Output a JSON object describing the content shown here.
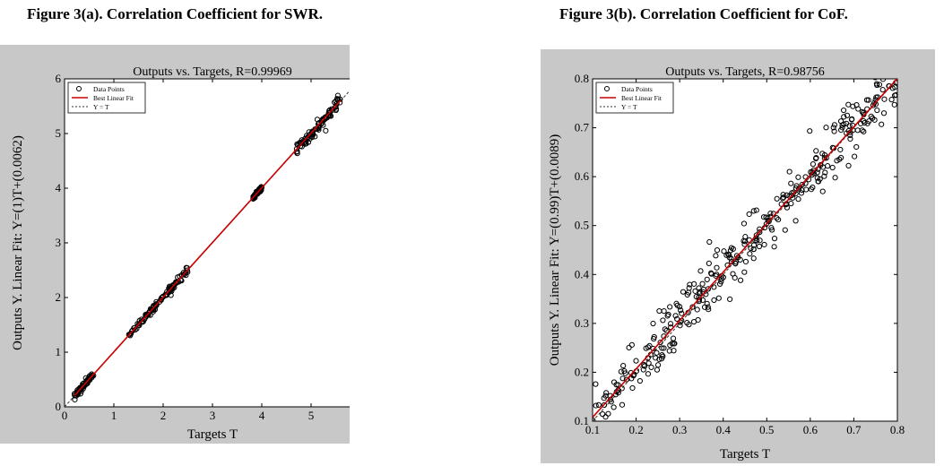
{
  "figures": {
    "a": {
      "caption": "Figure 3(a). Correlation Coefficient for SWR."
    },
    "b": {
      "caption": "Figure 3(b). Correlation Coefficient for CoF."
    }
  },
  "chart_data": [
    {
      "type": "scatter",
      "title": "Outputs vs. Targets, R=0.99969",
      "xlabel": "Targets T",
      "ylabel": "Outputs Y. Linear Fit: Y=(1)T+(0.0062)",
      "xlim": [
        0,
        6
      ],
      "ylim": [
        0,
        6
      ],
      "xticks": [
        0,
        1,
        2,
        3,
        4,
        5,
        6
      ],
      "yticks": [
        0,
        1,
        2,
        3,
        4,
        5,
        6
      ],
      "grid": false,
      "legend": {
        "placement": "top-left",
        "entries": [
          "Data Points",
          "Best Linear Fit",
          "Y = T"
        ]
      },
      "fit": {
        "slope": 1.0,
        "intercept": 0.0062
      },
      "clusters": [
        {
          "x_range": [
            0.2,
            0.6
          ],
          "noise": 0.03
        },
        {
          "x_range": [
            1.3,
            2.5
          ],
          "noise": 0.03
        },
        {
          "x_range": [
            3.8,
            4.0
          ],
          "noise": 0.02
        },
        {
          "x_range": [
            4.7,
            5.6
          ],
          "noise": 0.06
        }
      ],
      "colors": {
        "fit": "#cc0000",
        "frame_bg": "#c8c8c8"
      }
    },
    {
      "type": "scatter",
      "title": "Outputs vs. Targets, R=0.98756",
      "xlabel": "Targets T",
      "ylabel": "Outputs Y. Linear Fit: Y=(0.99)T+(0.0089)",
      "xlim": [
        0.1,
        0.8
      ],
      "ylim": [
        0.1,
        0.8
      ],
      "xticks": [
        0.1,
        0.2,
        0.3,
        0.4,
        0.5,
        0.6,
        0.7,
        0.8
      ],
      "yticks": [
        0.1,
        0.2,
        0.3,
        0.4,
        0.5,
        0.6,
        0.7,
        0.8
      ],
      "grid": false,
      "legend": {
        "placement": "top-left",
        "entries": [
          "Data Points",
          "Best Linear Fit",
          "Y = T"
        ]
      },
      "fit": {
        "slope": 0.99,
        "intercept": 0.0089
      },
      "clusters": [
        {
          "x_range": [
            0.1,
            0.8
          ],
          "noise": 0.03
        }
      ],
      "colors": {
        "fit": "#cc0000",
        "frame_bg": "#c8c8c8"
      }
    }
  ]
}
